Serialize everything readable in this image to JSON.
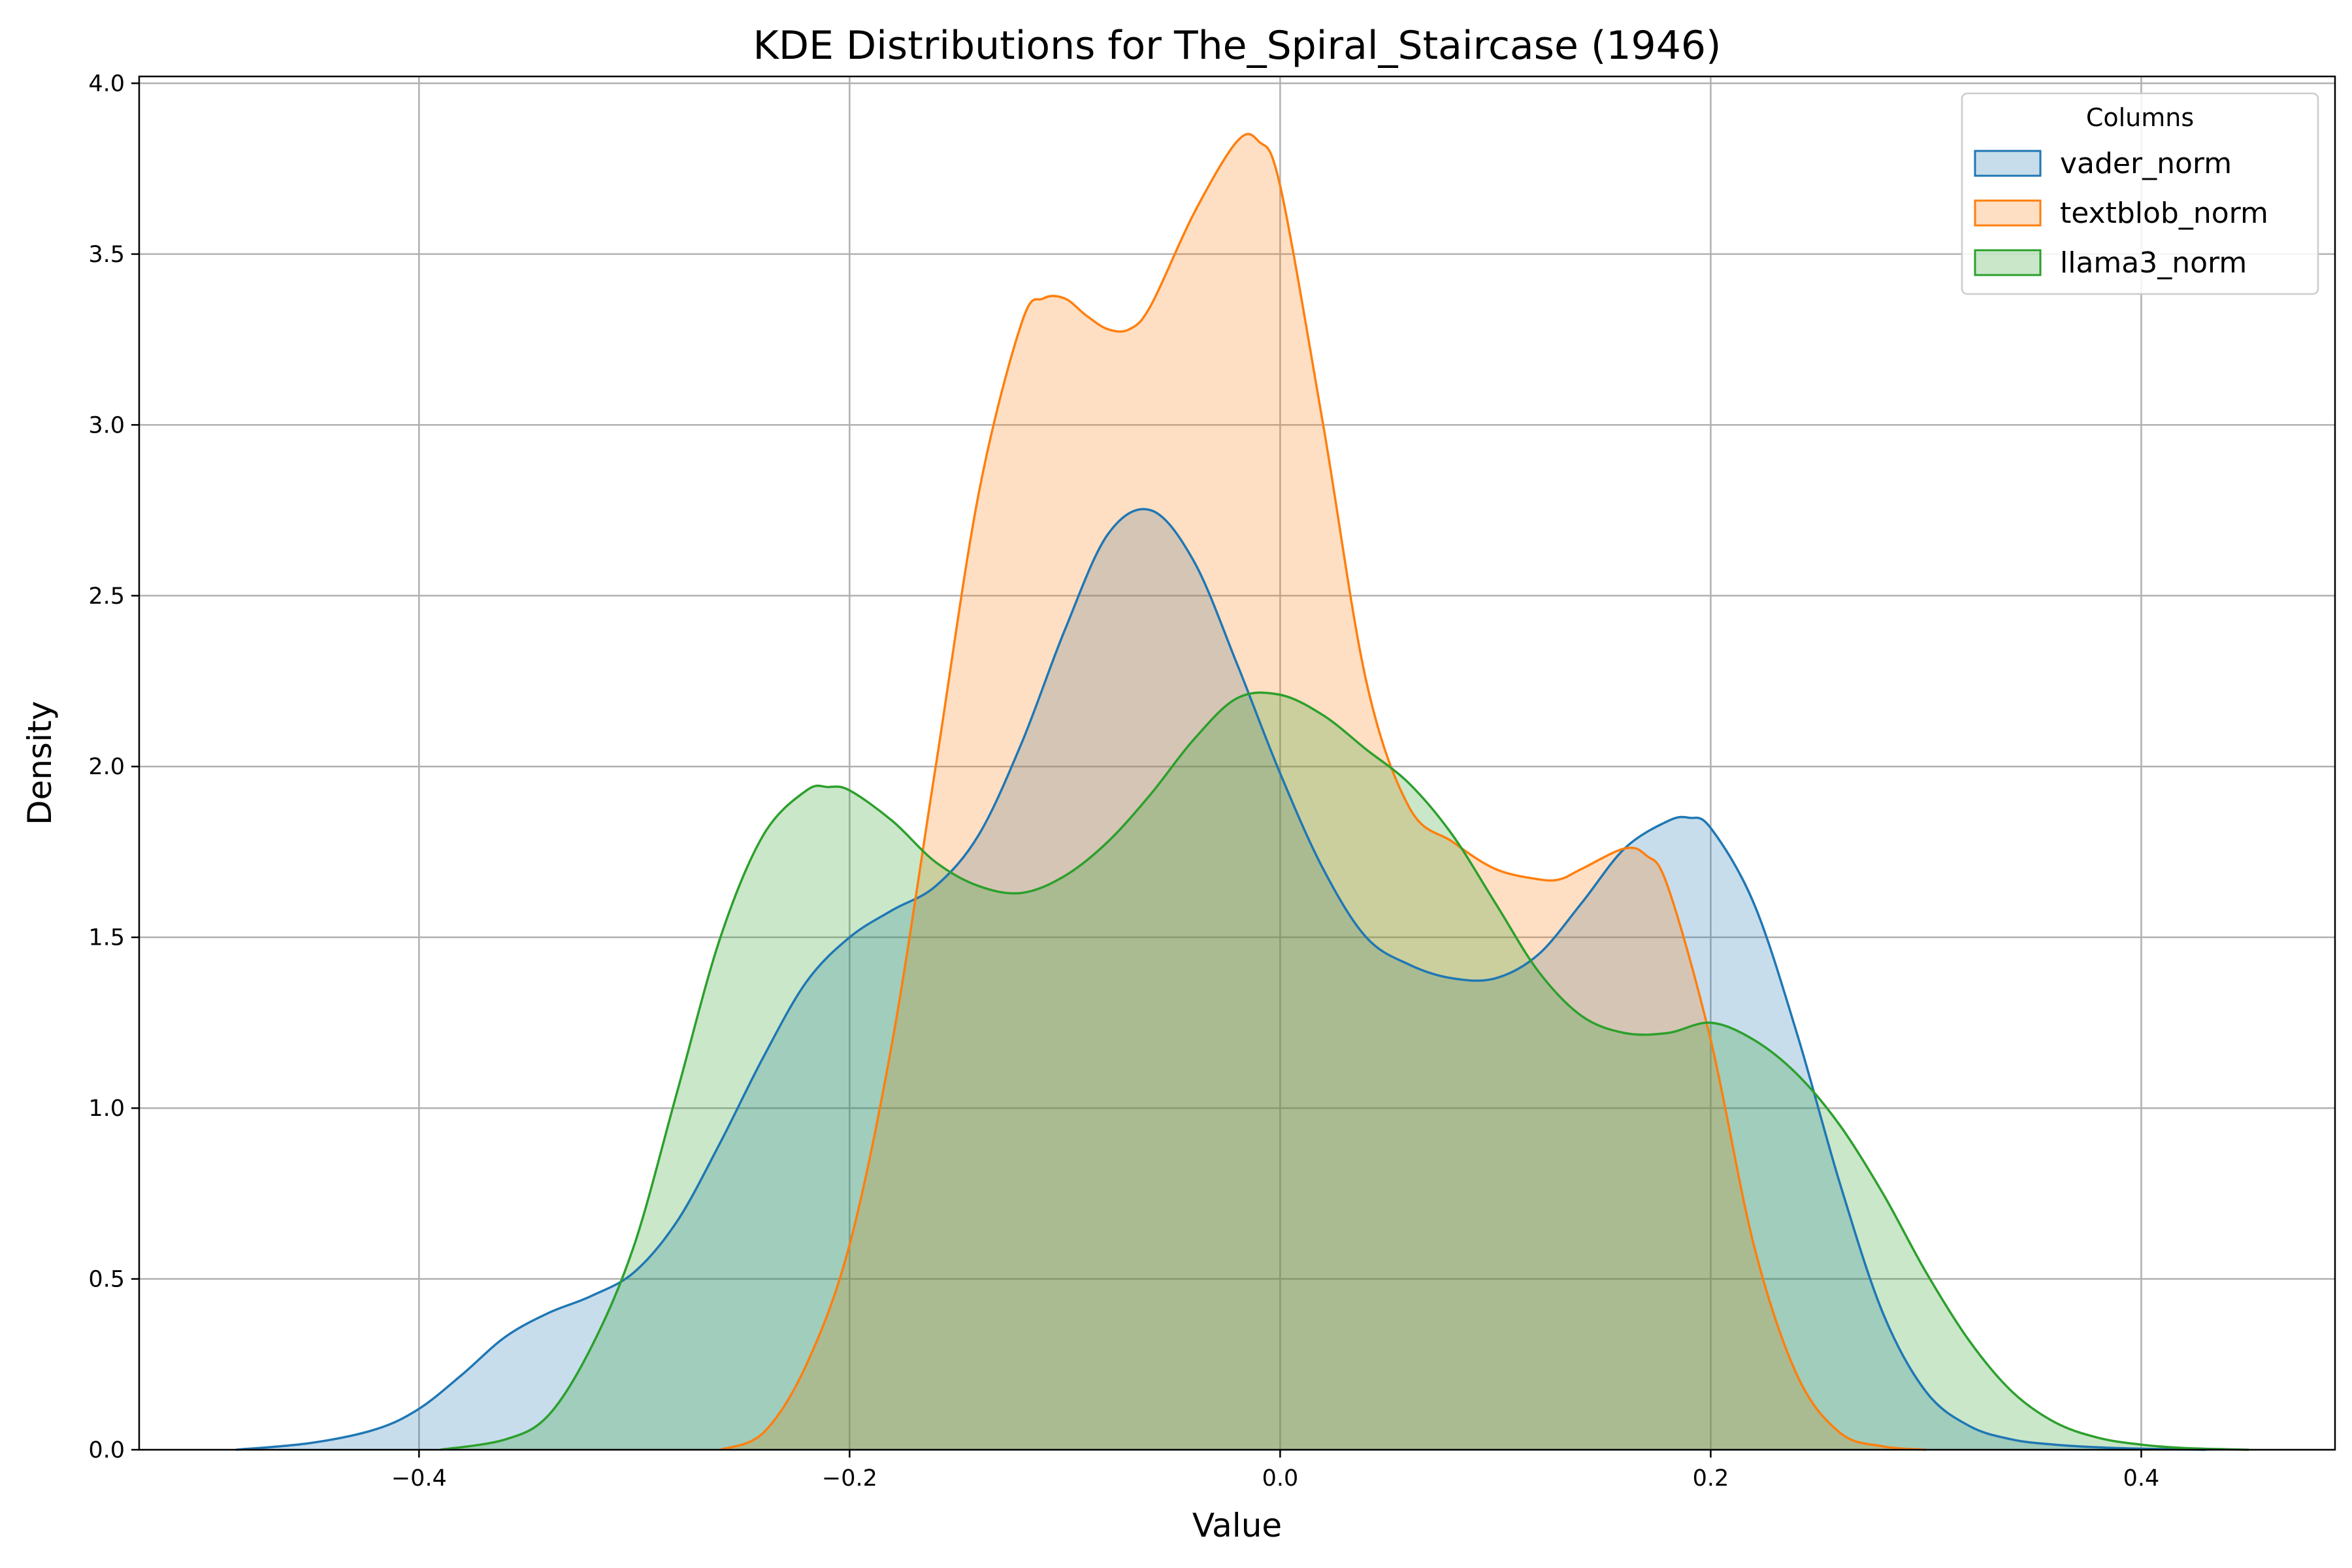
{
  "chart_data": {
    "type": "area",
    "title": "KDE Distributions for The_Spiral_Staircase (1946)",
    "xlabel": "Value",
    "ylabel": "Density",
    "xlim": [
      -0.53,
      0.49
    ],
    "ylim": [
      0,
      4.02
    ],
    "xticks": [
      -0.4,
      -0.2,
      0.0,
      0.2,
      0.4
    ],
    "xtick_labels": [
      "−0.4",
      "−0.2",
      "0.0",
      "0.2",
      "0.4"
    ],
    "yticks": [
      0.0,
      0.5,
      1.0,
      1.5,
      2.0,
      2.5,
      3.0,
      3.5,
      4.0
    ],
    "ytick_labels": [
      "0.0",
      "0.5",
      "1.0",
      "1.5",
      "2.0",
      "2.5",
      "3.0",
      "3.5",
      "4.0"
    ],
    "grid": true,
    "legend": {
      "title": "Columns",
      "placement": "top-right"
    },
    "series": [
      {
        "name": "vader_norm",
        "color": "#1f77b4",
        "fill_opacity": 0.25,
        "x": [
          -0.485,
          -0.45,
          -0.42,
          -0.4,
          -0.38,
          -0.36,
          -0.34,
          -0.32,
          -0.3,
          -0.28,
          -0.26,
          -0.24,
          -0.22,
          -0.2,
          -0.18,
          -0.16,
          -0.14,
          -0.12,
          -0.1,
          -0.08,
          -0.06,
          -0.04,
          -0.02,
          0.0,
          0.02,
          0.04,
          0.06,
          0.08,
          0.1,
          0.12,
          0.14,
          0.16,
          0.18,
          0.19,
          0.2,
          0.22,
          0.24,
          0.26,
          0.28,
          0.3,
          0.32,
          0.34,
          0.36,
          0.38,
          0.4,
          0.43
        ],
        "y": [
          0.0,
          0.02,
          0.06,
          0.12,
          0.22,
          0.33,
          0.4,
          0.45,
          0.52,
          0.67,
          0.9,
          1.15,
          1.37,
          1.5,
          1.58,
          1.65,
          1.8,
          2.07,
          2.4,
          2.68,
          2.75,
          2.6,
          2.3,
          1.98,
          1.7,
          1.5,
          1.42,
          1.38,
          1.38,
          1.45,
          1.6,
          1.76,
          1.84,
          1.85,
          1.82,
          1.6,
          1.22,
          0.78,
          0.4,
          0.17,
          0.07,
          0.03,
          0.015,
          0.007,
          0.003,
          0.0
        ]
      },
      {
        "name": "textblob_norm",
        "color": "#ff7f0e",
        "fill_opacity": 0.25,
        "x": [
          -0.26,
          -0.24,
          -0.22,
          -0.2,
          -0.18,
          -0.16,
          -0.14,
          -0.12,
          -0.11,
          -0.1,
          -0.09,
          -0.08,
          -0.07,
          -0.06,
          -0.04,
          -0.02,
          -0.01,
          0.0,
          0.02,
          0.04,
          0.06,
          0.08,
          0.1,
          0.12,
          0.13,
          0.14,
          0.16,
          0.17,
          0.18,
          0.2,
          0.22,
          0.24,
          0.26,
          0.28,
          0.3
        ],
        "y": [
          0.0,
          0.05,
          0.25,
          0.6,
          1.2,
          2.0,
          2.8,
          3.3,
          3.37,
          3.37,
          3.32,
          3.28,
          3.28,
          3.35,
          3.62,
          3.83,
          3.83,
          3.7,
          3.0,
          2.25,
          1.88,
          1.78,
          1.7,
          1.67,
          1.67,
          1.7,
          1.76,
          1.74,
          1.65,
          1.2,
          0.6,
          0.22,
          0.05,
          0.01,
          0.0
        ]
      },
      {
        "name": "llama3_norm",
        "color": "#2ca02c",
        "fill_opacity": 0.25,
        "x": [
          -0.39,
          -0.36,
          -0.34,
          -0.32,
          -0.3,
          -0.28,
          -0.26,
          -0.24,
          -0.22,
          -0.21,
          -0.2,
          -0.18,
          -0.16,
          -0.14,
          -0.12,
          -0.1,
          -0.08,
          -0.06,
          -0.04,
          -0.02,
          0.0,
          0.02,
          0.04,
          0.06,
          0.08,
          0.1,
          0.12,
          0.14,
          0.16,
          0.18,
          0.2,
          0.22,
          0.24,
          0.26,
          0.28,
          0.3,
          0.32,
          0.34,
          0.36,
          0.38,
          0.4,
          0.42,
          0.45
        ],
        "y": [
          0.0,
          0.03,
          0.1,
          0.3,
          0.6,
          1.05,
          1.5,
          1.8,
          1.93,
          1.94,
          1.93,
          1.84,
          1.72,
          1.65,
          1.63,
          1.68,
          1.78,
          1.92,
          2.08,
          2.2,
          2.21,
          2.15,
          2.05,
          1.95,
          1.8,
          1.6,
          1.4,
          1.27,
          1.22,
          1.22,
          1.25,
          1.2,
          1.1,
          0.95,
          0.75,
          0.52,
          0.32,
          0.17,
          0.08,
          0.035,
          0.015,
          0.005,
          0.0
        ]
      }
    ]
  }
}
